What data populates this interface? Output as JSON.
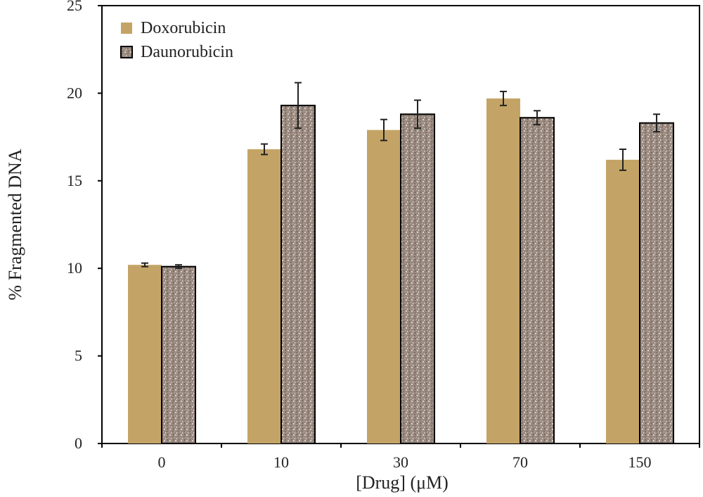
{
  "chart_data": {
    "type": "bar",
    "title": "",
    "xlabel": "[Drug] (μM)",
    "ylabel": "% Fragmented DNA",
    "categories": [
      "0",
      "10",
      "30",
      "70",
      "150"
    ],
    "ylim": [
      0,
      25
    ],
    "yticks": [
      0,
      5,
      10,
      15,
      20,
      25
    ],
    "grid": false,
    "legend_position": "top-left",
    "series": [
      {
        "name": "Doxorubicin",
        "values": [
          10.2,
          16.8,
          17.9,
          19.7,
          16.2
        ],
        "errors": [
          0.1,
          0.3,
          0.6,
          0.4,
          0.6
        ],
        "color": "#c4a466"
      },
      {
        "name": "Daunorubicin",
        "values": [
          10.1,
          19.3,
          18.8,
          18.6,
          18.3
        ],
        "errors": [
          0.1,
          1.3,
          0.8,
          0.4,
          0.5
        ],
        "color": "#9a8a80"
      }
    ]
  }
}
